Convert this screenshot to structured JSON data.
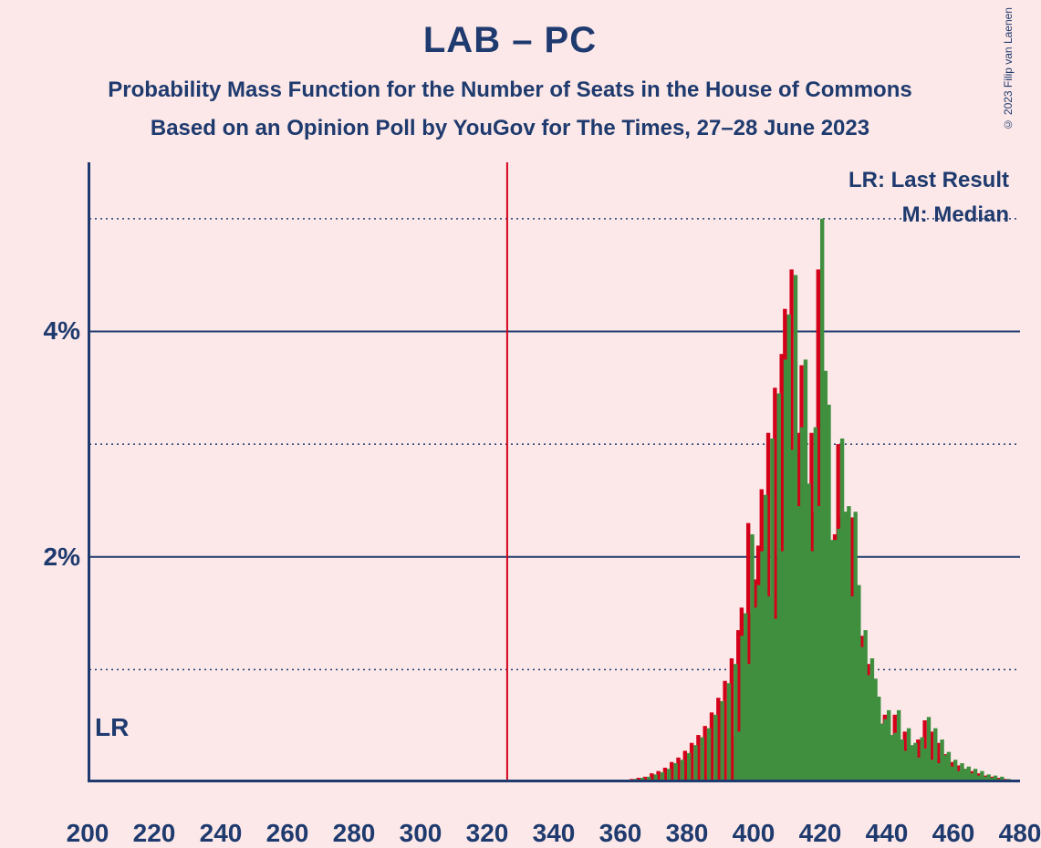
{
  "title": "LAB – PC",
  "subtitle1": "Probability Mass Function for the Number of Seats in the House of Commons",
  "subtitle2": "Based on an Opinion Poll by YouGov for The Times, 27–28 June 2023",
  "copyright": "© 2023 Filip van Laenen",
  "legend": {
    "lr": "LR: Last Result",
    "m": "M: Median"
  },
  "lr_marker": "LR",
  "chart": {
    "type": "bar-pmf",
    "background_color": "#fce8e8",
    "axis_color": "#1e3a6e",
    "grid_major_color": "#1e3a6e",
    "grid_minor_color": "#1e3a6e",
    "grid_major_width": 2,
    "grid_minor_dash": "2 4",
    "axis_width": 3,
    "xlim": [
      200,
      480
    ],
    "x_ticks": [
      200,
      220,
      240,
      260,
      280,
      300,
      320,
      340,
      360,
      380,
      400,
      420,
      440,
      460,
      480
    ],
    "ylim": [
      0,
      5.5
    ],
    "y_major_ticks": [
      2,
      4
    ],
    "y_minor_ticks": [
      1,
      3,
      5
    ],
    "y_tick_labels": {
      "2": "2%",
      "4": "4%"
    },
    "lr_x": 326,
    "lr_color": "#d4001a",
    "lr_width": 2,
    "series": [
      {
        "name": "red",
        "color": "#d4001a",
        "bar_width": 1.2,
        "offset": -0.6,
        "data": [
          [
            362,
            0.02
          ],
          [
            364,
            0.03
          ],
          [
            366,
            0.04
          ],
          [
            368,
            0.05
          ],
          [
            370,
            0.08
          ],
          [
            372,
            0.1
          ],
          [
            374,
            0.13
          ],
          [
            376,
            0.18
          ],
          [
            378,
            0.22
          ],
          [
            380,
            0.28
          ],
          [
            382,
            0.35
          ],
          [
            384,
            0.42
          ],
          [
            386,
            0.5
          ],
          [
            388,
            0.62
          ],
          [
            390,
            0.75
          ],
          [
            392,
            0.9
          ],
          [
            394,
            1.1
          ],
          [
            395,
            0.4
          ],
          [
            396,
            1.35
          ],
          [
            397,
            1.55
          ],
          [
            398,
            1.0
          ],
          [
            399,
            2.3
          ],
          [
            400,
            1.5
          ],
          [
            401,
            1.8
          ],
          [
            402,
            2.1
          ],
          [
            403,
            2.6
          ],
          [
            404,
            1.6
          ],
          [
            405,
            3.1
          ],
          [
            406,
            1.4
          ],
          [
            407,
            3.5
          ],
          [
            408,
            2.0
          ],
          [
            409,
            3.8
          ],
          [
            410,
            4.2
          ],
          [
            411,
            2.9
          ],
          [
            412,
            4.55
          ],
          [
            413,
            2.4
          ],
          [
            414,
            3.1
          ],
          [
            415,
            3.7
          ],
          [
            416,
            2.6
          ],
          [
            417,
            2.0
          ],
          [
            418,
            3.1
          ],
          [
            419,
            2.4
          ],
          [
            420,
            4.55
          ],
          [
            421,
            3.6
          ],
          [
            422,
            3.3
          ],
          [
            423,
            2.1
          ],
          [
            424,
            2.1
          ],
          [
            425,
            2.2
          ],
          [
            426,
            3.0
          ],
          [
            427,
            2.35
          ],
          [
            428,
            2.4
          ],
          [
            429,
            1.6
          ],
          [
            430,
            2.35
          ],
          [
            431,
            1.7
          ],
          [
            432,
            1.15
          ],
          [
            433,
            1.3
          ],
          [
            434,
            0.9
          ],
          [
            435,
            1.05
          ],
          [
            436,
            0.88
          ],
          [
            437,
            0.72
          ],
          [
            438,
            0.48
          ],
          [
            439,
            0.52
          ],
          [
            440,
            0.6
          ],
          [
            441,
            0.38
          ],
          [
            442,
            0.4
          ],
          [
            443,
            0.6
          ],
          [
            444,
            0.35
          ],
          [
            445,
            0.25
          ],
          [
            446,
            0.45
          ],
          [
            447,
            0.3
          ],
          [
            448,
            0.32
          ],
          [
            449,
            0.2
          ],
          [
            450,
            0.38
          ],
          [
            451,
            0.28
          ],
          [
            452,
            0.55
          ],
          [
            453,
            0.18
          ],
          [
            454,
            0.45
          ],
          [
            455,
            0.15
          ],
          [
            456,
            0.35
          ],
          [
            457,
            0.22
          ],
          [
            458,
            0.25
          ],
          [
            459,
            0.12
          ],
          [
            460,
            0.18
          ],
          [
            461,
            0.08
          ],
          [
            462,
            0.15
          ],
          [
            463,
            0.1
          ],
          [
            464,
            0.12
          ],
          [
            465,
            0.06
          ],
          [
            466,
            0.1
          ],
          [
            467,
            0.05
          ],
          [
            468,
            0.08
          ],
          [
            469,
            0.04
          ],
          [
            470,
            0.06
          ],
          [
            471,
            0.03
          ],
          [
            472,
            0.05
          ],
          [
            473,
            0.03
          ],
          [
            474,
            0.04
          ],
          [
            475,
            0.02
          ],
          [
            476,
            0.03
          ],
          [
            477,
            0.02
          ],
          [
            478,
            0.02
          ]
        ]
      },
      {
        "name": "green",
        "color": "#3f8f3f",
        "bar_width": 1.2,
        "offset": 0.6,
        "data": [
          [
            362,
            0.02
          ],
          [
            364,
            0.03
          ],
          [
            366,
            0.04
          ],
          [
            368,
            0.05
          ],
          [
            370,
            0.07
          ],
          [
            372,
            0.09
          ],
          [
            374,
            0.12
          ],
          [
            376,
            0.17
          ],
          [
            378,
            0.2
          ],
          [
            380,
            0.26
          ],
          [
            382,
            0.33
          ],
          [
            384,
            0.4
          ],
          [
            386,
            0.48
          ],
          [
            388,
            0.6
          ],
          [
            390,
            0.72
          ],
          [
            392,
            0.88
          ],
          [
            394,
            1.05
          ],
          [
            395,
            0.45
          ],
          [
            396,
            1.3
          ],
          [
            397,
            1.5
          ],
          [
            398,
            1.05
          ],
          [
            399,
            2.2
          ],
          [
            400,
            1.55
          ],
          [
            401,
            1.75
          ],
          [
            402,
            2.05
          ],
          [
            403,
            2.55
          ],
          [
            404,
            1.65
          ],
          [
            405,
            3.05
          ],
          [
            406,
            1.45
          ],
          [
            407,
            3.45
          ],
          [
            408,
            2.05
          ],
          [
            409,
            3.75
          ],
          [
            410,
            4.15
          ],
          [
            411,
            2.95
          ],
          [
            412,
            4.5
          ],
          [
            413,
            2.45
          ],
          [
            414,
            3.15
          ],
          [
            415,
            3.75
          ],
          [
            416,
            2.65
          ],
          [
            417,
            2.05
          ],
          [
            418,
            3.15
          ],
          [
            419,
            2.45
          ],
          [
            420,
            5.0
          ],
          [
            421,
            3.65
          ],
          [
            422,
            3.35
          ],
          [
            423,
            2.15
          ],
          [
            424,
            2.15
          ],
          [
            425,
            2.25
          ],
          [
            426,
            3.05
          ],
          [
            427,
            2.4
          ],
          [
            428,
            2.45
          ],
          [
            429,
            1.65
          ],
          [
            430,
            2.4
          ],
          [
            431,
            1.75
          ],
          [
            432,
            1.2
          ],
          [
            433,
            1.35
          ],
          [
            434,
            0.95
          ],
          [
            435,
            1.1
          ],
          [
            436,
            0.92
          ],
          [
            437,
            0.76
          ],
          [
            438,
            0.52
          ],
          [
            439,
            0.56
          ],
          [
            440,
            0.64
          ],
          [
            441,
            0.42
          ],
          [
            442,
            0.44
          ],
          [
            443,
            0.64
          ],
          [
            444,
            0.38
          ],
          [
            445,
            0.28
          ],
          [
            446,
            0.48
          ],
          [
            447,
            0.33
          ],
          [
            448,
            0.35
          ],
          [
            449,
            0.22
          ],
          [
            450,
            0.4
          ],
          [
            451,
            0.3
          ],
          [
            452,
            0.58
          ],
          [
            453,
            0.2
          ],
          [
            454,
            0.48
          ],
          [
            455,
            0.17
          ],
          [
            456,
            0.38
          ],
          [
            457,
            0.24
          ],
          [
            458,
            0.27
          ],
          [
            459,
            0.14
          ],
          [
            460,
            0.2
          ],
          [
            461,
            0.1
          ],
          [
            462,
            0.17
          ],
          [
            463,
            0.12
          ],
          [
            464,
            0.14
          ],
          [
            465,
            0.08
          ],
          [
            466,
            0.12
          ],
          [
            467,
            0.06
          ],
          [
            468,
            0.1
          ],
          [
            469,
            0.05
          ],
          [
            470,
            0.07
          ],
          [
            471,
            0.04
          ],
          [
            472,
            0.06
          ],
          [
            473,
            0.03
          ],
          [
            474,
            0.05
          ],
          [
            475,
            0.02
          ],
          [
            476,
            0.03
          ],
          [
            477,
            0.02
          ],
          [
            478,
            0.02
          ]
        ]
      }
    ],
    "title_fontsize": 40,
    "subtitle_fontsize": 24,
    "axis_label_fontsize": 28,
    "legend_fontsize": 24,
    "text_color": "#1e3a6e"
  }
}
